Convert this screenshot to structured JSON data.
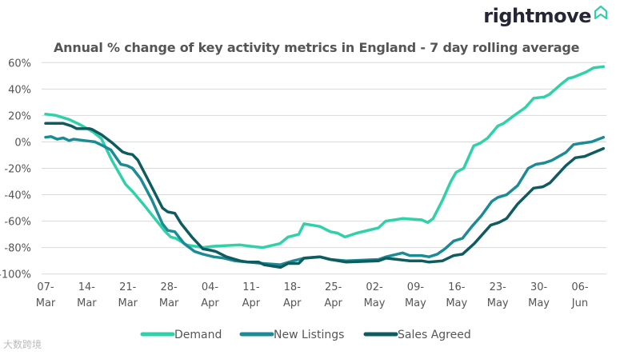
{
  "brand": {
    "name": "rightmove",
    "icon": "house-outline-icon"
  },
  "watermark": "大数跨境",
  "chart_data": {
    "type": "line",
    "title": "Annual % change of key activity metrics in England - 7 day rolling average",
    "xlabel": "",
    "ylabel": "",
    "x_unit": "days since 07-Mar",
    "xlim": [
      0,
      95
    ],
    "ylim": [
      -100,
      60
    ],
    "grid": true,
    "legend_position": "bottom",
    "y_ticks": [
      60,
      40,
      20,
      0,
      -20,
      -40,
      -60,
      -80,
      -100
    ],
    "y_tick_labels": [
      "60%",
      "40%",
      "20%",
      "0%",
      "-20%",
      "-40%",
      "-60%",
      "-80%",
      "-100%"
    ],
    "x_ticks": [
      {
        "day": 0,
        "label": [
          "07-",
          "Mar"
        ]
      },
      {
        "day": 7,
        "label": [
          "14-",
          "Mar"
        ]
      },
      {
        "day": 14,
        "label": [
          "21-",
          "Mar"
        ]
      },
      {
        "day": 21,
        "label": [
          "28-",
          "Mar"
        ]
      },
      {
        "day": 28,
        "label": [
          "04-",
          "Apr"
        ]
      },
      {
        "day": 35,
        "label": [
          "11-",
          "Apr"
        ]
      },
      {
        "day": 42,
        "label": [
          "18-",
          "Apr"
        ]
      },
      {
        "day": 49,
        "label": [
          "25-",
          "Apr"
        ]
      },
      {
        "day": 56,
        "label": [
          "02-",
          "May"
        ]
      },
      {
        "day": 63,
        "label": [
          "09-",
          "May"
        ]
      },
      {
        "day": 70,
        "label": [
          "16-",
          "May"
        ]
      },
      {
        "day": 77,
        "label": [
          "23-",
          "May"
        ]
      },
      {
        "day": 84,
        "label": [
          "30-",
          "May"
        ]
      },
      {
        "day": 91,
        "label": [
          "06-",
          "Jun"
        ]
      }
    ],
    "series": [
      {
        "name": "Demand",
        "color": "#2fd1a9",
        "points": [
          [
            0,
            21
          ],
          [
            1.8,
            20
          ],
          [
            4,
            17
          ],
          [
            5.9,
            13
          ],
          [
            8.1,
            7.5
          ],
          [
            9.5,
            2.5
          ],
          [
            11.3,
            -14
          ],
          [
            13.6,
            -32
          ],
          [
            14.9,
            -38
          ],
          [
            16.8,
            -48
          ],
          [
            18.6,
            -58
          ],
          [
            20.4,
            -68
          ],
          [
            21.3,
            -72
          ],
          [
            22.2,
            -73
          ],
          [
            24,
            -78
          ],
          [
            26.8,
            -80
          ],
          [
            28.6,
            -79
          ],
          [
            33.1,
            -78
          ],
          [
            34.9,
            -79
          ],
          [
            37,
            -80
          ],
          [
            39.9,
            -77
          ],
          [
            41.3,
            -72
          ],
          [
            43.1,
            -70
          ],
          [
            44,
            -62
          ],
          [
            46.7,
            -64
          ],
          [
            48.5,
            -68
          ],
          [
            49.7,
            -69
          ],
          [
            51,
            -72
          ],
          [
            53,
            -69
          ],
          [
            56.7,
            -65
          ],
          [
            57.9,
            -60
          ],
          [
            60.8,
            -58
          ],
          [
            64,
            -59
          ],
          [
            65.1,
            -61
          ],
          [
            66,
            -58
          ],
          [
            67.6,
            -44
          ],
          [
            69,
            -30
          ],
          [
            69.9,
            -23
          ],
          [
            71.2,
            -20
          ],
          [
            72.9,
            -3
          ],
          [
            74,
            -1
          ],
          [
            75.3,
            3
          ],
          [
            77,
            12
          ],
          [
            78,
            14
          ],
          [
            79.8,
            20
          ],
          [
            81.7,
            26
          ],
          [
            83.1,
            33
          ],
          [
            84.9,
            34
          ],
          [
            85.8,
            36
          ],
          [
            87.6,
            43
          ],
          [
            89,
            48
          ],
          [
            89.9,
            49
          ],
          [
            92.1,
            53
          ],
          [
            93.3,
            56
          ],
          [
            95,
            57
          ]
        ]
      },
      {
        "name": "New Listings",
        "color": "#1b8b96",
        "points": [
          [
            0,
            3.5
          ],
          [
            0.9,
            4
          ],
          [
            2,
            2
          ],
          [
            3,
            3
          ],
          [
            4,
            1
          ],
          [
            4.8,
            2
          ],
          [
            6.6,
            1
          ],
          [
            8.4,
            0
          ],
          [
            9.8,
            -3
          ],
          [
            11.1,
            -6
          ],
          [
            12.8,
            -17
          ],
          [
            13.9,
            -18
          ],
          [
            14.8,
            -20
          ],
          [
            16.2,
            -28
          ],
          [
            18.1,
            -44
          ],
          [
            19.9,
            -62
          ],
          [
            20.8,
            -67
          ],
          [
            22,
            -68
          ],
          [
            23.6,
            -77
          ],
          [
            25.4,
            -83
          ],
          [
            26.8,
            -85
          ],
          [
            28.6,
            -87
          ],
          [
            30.4,
            -88
          ],
          [
            32.2,
            -90
          ],
          [
            34.5,
            -91
          ],
          [
            37,
            -92
          ],
          [
            40,
            -93
          ],
          [
            42.2,
            -90
          ],
          [
            44,
            -88
          ],
          [
            46.7,
            -87
          ],
          [
            48.5,
            -89
          ],
          [
            51.2,
            -90
          ],
          [
            56.7,
            -89
          ],
          [
            58,
            -87
          ],
          [
            60.8,
            -84
          ],
          [
            62,
            -86
          ],
          [
            64,
            -86
          ],
          [
            65.3,
            -87
          ],
          [
            66.7,
            -85
          ],
          [
            68,
            -81
          ],
          [
            69.5,
            -75
          ],
          [
            71,
            -73
          ],
          [
            72.6,
            -64
          ],
          [
            74.2,
            -56
          ],
          [
            76,
            -45
          ],
          [
            77,
            -42
          ],
          [
            78.5,
            -40
          ],
          [
            80.4,
            -33
          ],
          [
            82.2,
            -20
          ],
          [
            83.5,
            -17
          ],
          [
            84.9,
            -16
          ],
          [
            86.2,
            -14
          ],
          [
            88.6,
            -8
          ],
          [
            89.9,
            -2
          ],
          [
            91.3,
            -1
          ],
          [
            93,
            0
          ],
          [
            95,
            3.5
          ]
        ]
      },
      {
        "name": "Sales Agreed",
        "color": "#0e5c60",
        "points": [
          [
            0,
            14
          ],
          [
            1.8,
            14
          ],
          [
            3,
            14
          ],
          [
            4.4,
            12
          ],
          [
            5.3,
            10
          ],
          [
            7.5,
            10
          ],
          [
            7.9,
            9.5
          ],
          [
            9.5,
            5.5
          ],
          [
            11.3,
            -0.5
          ],
          [
            13.1,
            -7.6
          ],
          [
            14,
            -9
          ],
          [
            14.8,
            -9.6
          ],
          [
            15.7,
            -13.7
          ],
          [
            17.6,
            -30
          ],
          [
            19.9,
            -50
          ],
          [
            20.8,
            -53
          ],
          [
            22,
            -54
          ],
          [
            23.1,
            -62
          ],
          [
            24.9,
            -72
          ],
          [
            26.8,
            -81
          ],
          [
            28.1,
            -82
          ],
          [
            29,
            -83
          ],
          [
            30.8,
            -87
          ],
          [
            33.1,
            -90
          ],
          [
            34.5,
            -91
          ],
          [
            36.3,
            -91
          ],
          [
            37.2,
            -93
          ],
          [
            40,
            -95
          ],
          [
            41.3,
            -92
          ],
          [
            43.1,
            -92
          ],
          [
            44,
            -88
          ],
          [
            46.7,
            -87
          ],
          [
            48.5,
            -89
          ],
          [
            51.2,
            -91
          ],
          [
            56.7,
            -90
          ],
          [
            58,
            -88
          ],
          [
            62,
            -90
          ],
          [
            64,
            -90
          ],
          [
            65.3,
            -91
          ],
          [
            67.6,
            -90
          ],
          [
            69.5,
            -86
          ],
          [
            71,
            -85
          ],
          [
            73,
            -77
          ],
          [
            75.8,
            -63
          ],
          [
            77.2,
            -61
          ],
          [
            78.5,
            -58
          ],
          [
            80.4,
            -47
          ],
          [
            83.1,
            -35
          ],
          [
            84.7,
            -34
          ],
          [
            85.9,
            -31
          ],
          [
            88.6,
            -18
          ],
          [
            90.2,
            -12
          ],
          [
            91.8,
            -11
          ],
          [
            95,
            -5
          ]
        ]
      }
    ]
  }
}
